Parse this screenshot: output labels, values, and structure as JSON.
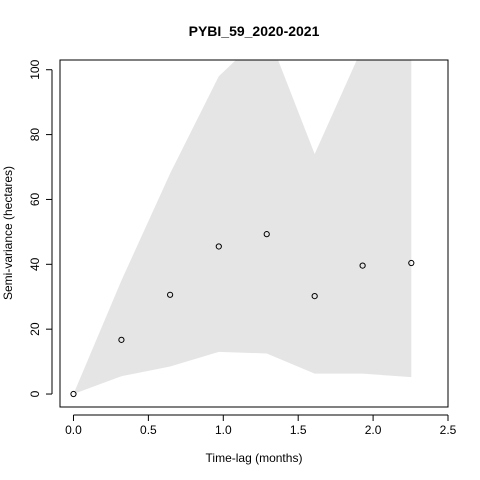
{
  "chart_data": {
    "type": "scatter",
    "title": "PYBI_59_2020-2021",
    "xlabel": "Time-lag (months)",
    "ylabel": "Semi-variance (hectares)",
    "xlim": [
      -0.09,
      2.5
    ],
    "ylim": [
      -4,
      103
    ],
    "xticks": [
      0.0,
      0.5,
      1.0,
      1.5,
      2.0,
      2.5
    ],
    "xtick_labels": [
      "0.0",
      "0.5",
      "1.0",
      "1.5",
      "2.0",
      "2.5"
    ],
    "yticks": [
      0,
      20,
      40,
      60,
      80,
      100
    ],
    "ytick_labels": [
      "0",
      "20",
      "40",
      "60",
      "80",
      "100"
    ],
    "grid": false,
    "legend": "none",
    "series": [
      {
        "x": [
          0.0,
          0.32,
          0.645,
          0.97,
          1.29,
          1.61,
          1.93,
          2.255
        ],
        "y": [
          0.0,
          16.7,
          30.6,
          45.5,
          49.3,
          30.2,
          39.6,
          40.4
        ]
      }
    ],
    "envelope": {
      "x": [
        0.0,
        0.32,
        0.645,
        0.97,
        1.29,
        1.61,
        1.93,
        2.255
      ],
      "lower": [
        0.0,
        5.5,
        8.5,
        13.0,
        12.5,
        6.3,
        6.3,
        5.2
      ],
      "upper": [
        0.0,
        35.0,
        68.0,
        98.0,
        112.0,
        74.0,
        107.0,
        110.0
      ],
      "fill": "#e5e5e5"
    },
    "point_color": "#000000",
    "axis_color": "#000000"
  }
}
